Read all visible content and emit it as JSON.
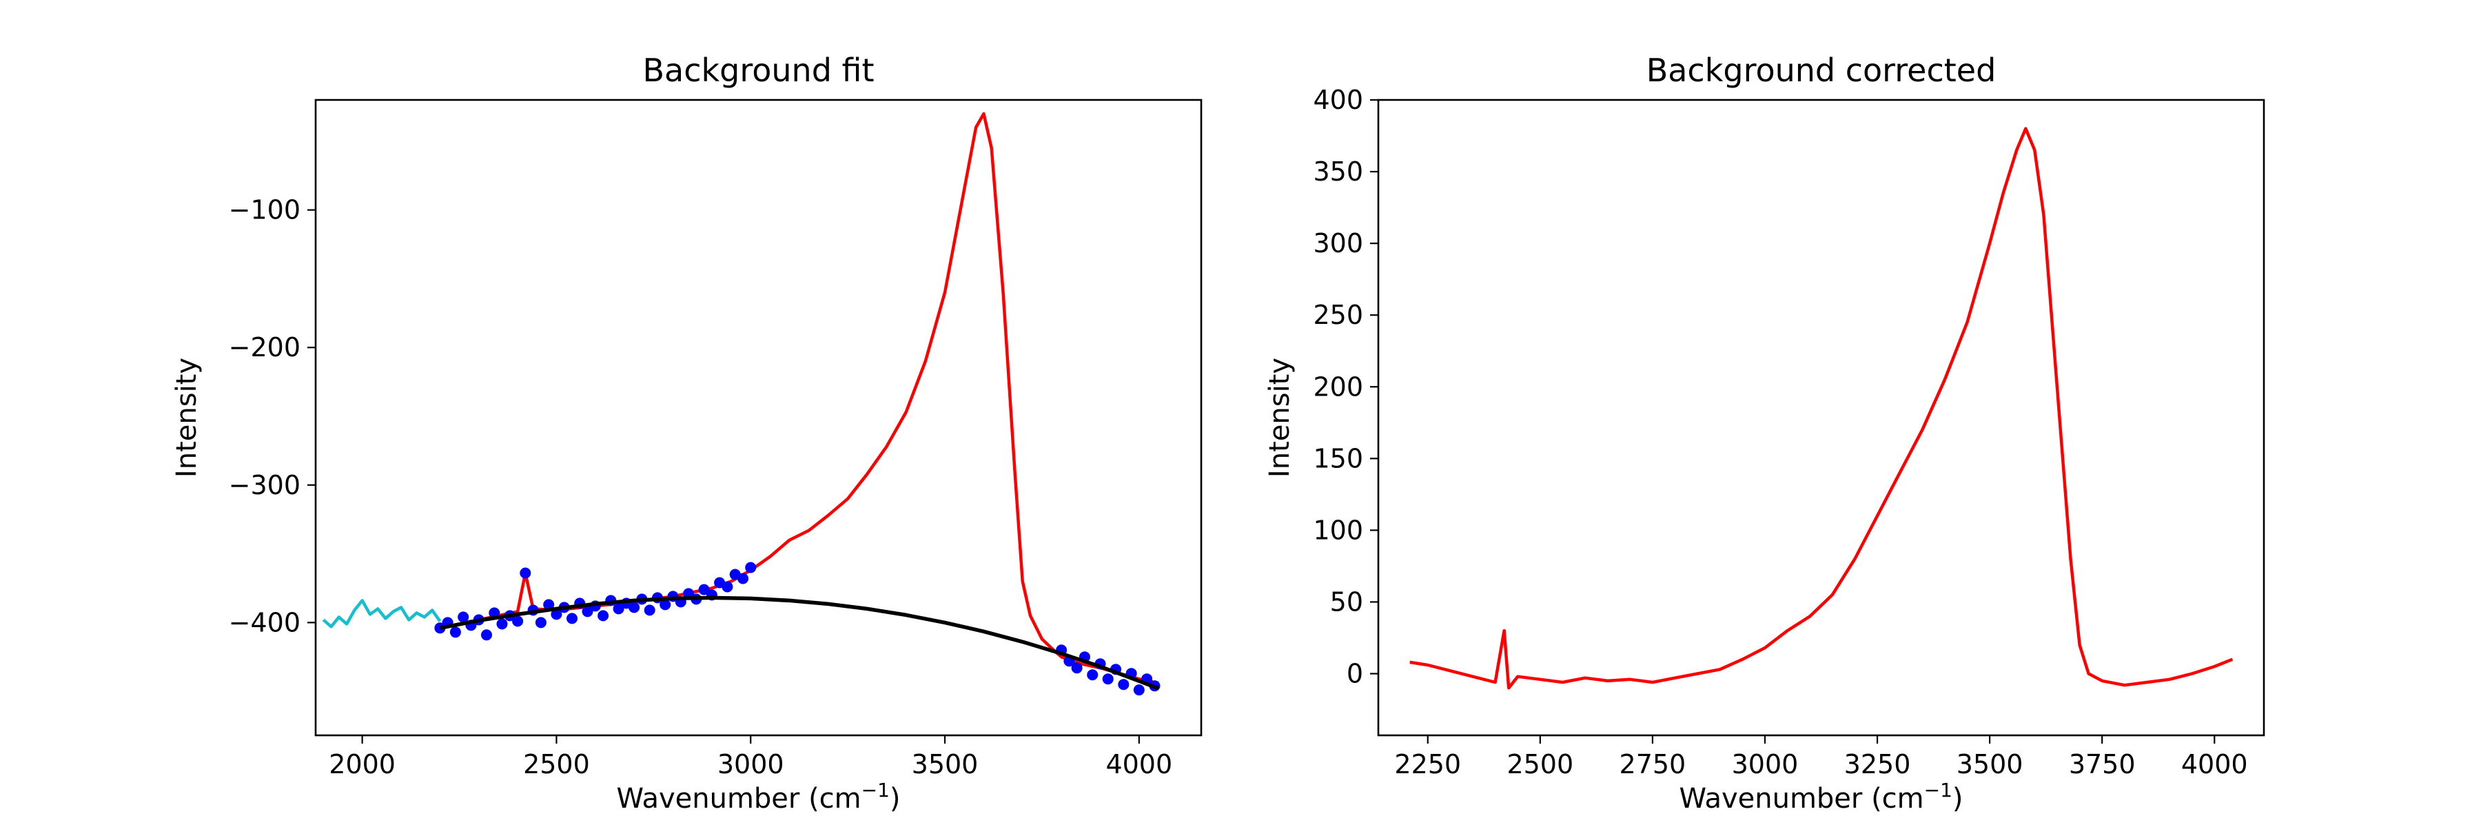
{
  "chart_data": [
    {
      "type": "line",
      "title": "Background fit",
      "xlabel": "Wavenumber (cm",
      "xlabel_sup": "−1",
      "xlabel_suffix": ")",
      "ylabel": "Intensity",
      "xlim": [
        1880,
        4160
      ],
      "ylim": [
        -482,
        -20
      ],
      "xticks": [
        2000,
        2500,
        3000,
        3500,
        4000
      ],
      "xtick_labels": [
        "2000",
        "2500",
        "3000",
        "3500",
        "4000"
      ],
      "yticks": [
        -100,
        -200,
        -300,
        -400
      ],
      "ytick_labels": [
        "−100",
        "−200",
        "−300",
        "−400"
      ],
      "grid": false,
      "series": [
        {
          "role": "excluded-low-region",
          "color": "#17becf",
          "style": "line",
          "x": [
            1900,
            1920,
            1940,
            1960,
            1980,
            2000,
            2020,
            2040,
            2060,
            2080,
            2100,
            2120,
            2140,
            2160,
            2180,
            2200
          ],
          "y": [
            -398,
            -403,
            -396,
            -401,
            -391,
            -384,
            -394,
            -390,
            -397,
            -392,
            -389,
            -398,
            -393,
            -396,
            -391,
            -399
          ]
        },
        {
          "role": "signal-raw",
          "color": "#ff0000",
          "style": "line",
          "x": [
            2200,
            2300,
            2400,
            2420,
            2440,
            2500,
            2600,
            2700,
            2800,
            2900,
            2950,
            3000,
            3050,
            3100,
            3150,
            3200,
            3250,
            3300,
            3350,
            3400,
            3450,
            3500,
            3530,
            3560,
            3580,
            3600,
            3620,
            3650,
            3680,
            3700,
            3720,
            3750,
            3780,
            3800,
            3850,
            3900,
            3950,
            4000,
            4050
          ],
          "y": [
            -404,
            -398,
            -392,
            -364,
            -390,
            -391,
            -388,
            -385,
            -381,
            -375,
            -370,
            -362,
            -352,
            -340,
            -333,
            -322,
            -310,
            -292,
            -272,
            -247,
            -210,
            -160,
            -115,
            -70,
            -40,
            -30,
            -55,
            -160,
            -290,
            -370,
            -395,
            -412,
            -420,
            -425,
            -430,
            -433,
            -437,
            -441,
            -444
          ]
        },
        {
          "role": "background-points-low",
          "color": "#0000ff",
          "style": "markers",
          "x": [
            2200,
            2220,
            2240,
            2260,
            2280,
            2300,
            2320,
            2340,
            2360,
            2380,
            2400,
            2420,
            2440,
            2460,
            2480,
            2500,
            2520,
            2540,
            2560,
            2580,
            2600,
            2620,
            2640,
            2660,
            2680,
            2700,
            2720,
            2740,
            2760,
            2780,
            2800,
            2820,
            2840,
            2860,
            2880,
            2900,
            2920,
            2940,
            2960,
            2980,
            3000
          ],
          "y": [
            -404,
            -400,
            -407,
            -396,
            -402,
            -398,
            -409,
            -393,
            -401,
            -395,
            -399,
            -364,
            -391,
            -400,
            -387,
            -394,
            -389,
            -397,
            -386,
            -392,
            -388,
            -395,
            -384,
            -390,
            -386,
            -389,
            -383,
            -391,
            -382,
            -387,
            -381,
            -385,
            -379,
            -383,
            -376,
            -380,
            -371,
            -374,
            -365,
            -368,
            -360
          ]
        },
        {
          "role": "background-points-high",
          "color": "#0000ff",
          "style": "markers",
          "x": [
            3800,
            3820,
            3840,
            3860,
            3880,
            3900,
            3920,
            3940,
            3960,
            3980,
            4000,
            4020,
            4040
          ],
          "y": [
            -420,
            -428,
            -433,
            -425,
            -438,
            -430,
            -441,
            -434,
            -445,
            -437,
            -449,
            -441,
            -446
          ]
        },
        {
          "role": "polynomial-fit",
          "color": "#000000",
          "style": "line",
          "x": [
            2200,
            2300,
            2400,
            2500,
            2600,
            2700,
            2800,
            2900,
            3000,
            3100,
            3200,
            3300,
            3400,
            3500,
            3600,
            3700,
            3800,
            3900,
            4000,
            4050
          ],
          "y": [
            -404,
            -398.5,
            -394,
            -390,
            -386.5,
            -384,
            -382.5,
            -382,
            -382.5,
            -384,
            -386.5,
            -390,
            -394.5,
            -400,
            -406.5,
            -414,
            -422.5,
            -432,
            -442.5,
            -448
          ]
        }
      ]
    },
    {
      "type": "line",
      "title": "Background corrected",
      "xlabel": "Wavenumber (cm",
      "xlabel_sup": "−1",
      "xlabel_suffix": ")",
      "ylabel": "Intensity",
      "xlim": [
        2140,
        4110
      ],
      "ylim": [
        -43,
        400
      ],
      "xticks": [
        2250,
        2500,
        2750,
        3000,
        3250,
        3500,
        3750,
        4000
      ],
      "xtick_labels": [
        "2250",
        "2500",
        "2750",
        "3000",
        "3250",
        "3500",
        "3750",
        "4000"
      ],
      "yticks": [
        0,
        50,
        100,
        150,
        200,
        250,
        300,
        350,
        400
      ],
      "ytick_labels": [
        "0",
        "50",
        "100",
        "150",
        "200",
        "250",
        "300",
        "350",
        "400"
      ],
      "grid": false,
      "series": [
        {
          "role": "corrected-signal",
          "color": "#ff0000",
          "style": "line",
          "x": [
            2210,
            2250,
            2300,
            2350,
            2400,
            2420,
            2430,
            2450,
            2500,
            2550,
            2600,
            2650,
            2700,
            2750,
            2800,
            2850,
            2900,
            2950,
            3000,
            3050,
            3100,
            3150,
            3200,
            3250,
            3300,
            3350,
            3400,
            3450,
            3500,
            3530,
            3560,
            3580,
            3600,
            3620,
            3650,
            3680,
            3700,
            3720,
            3750,
            3800,
            3850,
            3900,
            3950,
            4000,
            4040
          ],
          "y": [
            8,
            6,
            2,
            -2,
            -6,
            30,
            -10,
            -2,
            -4,
            -6,
            -3,
            -5,
            -4,
            -6,
            -3,
            0,
            3,
            10,
            18,
            30,
            40,
            55,
            80,
            110,
            140,
            170,
            205,
            245,
            300,
            335,
            365,
            380,
            365,
            320,
            200,
            80,
            20,
            0,
            -5,
            -8,
            -6,
            -4,
            0,
            5,
            10
          ]
        }
      ]
    }
  ]
}
